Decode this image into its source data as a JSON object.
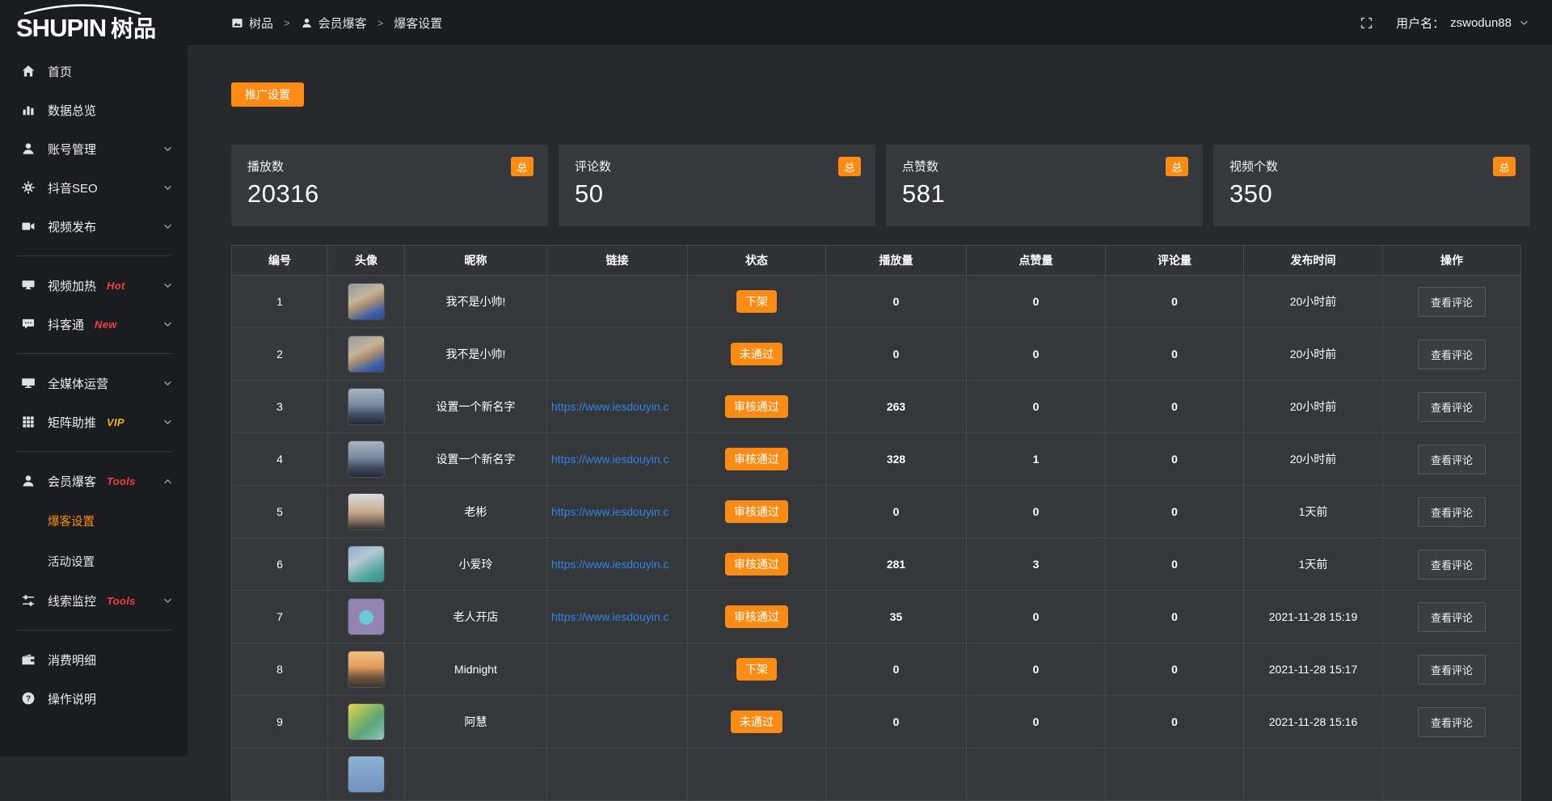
{
  "logo": {
    "brand_en": "SHUPIN",
    "brand_cn": "树品"
  },
  "header": {
    "breadcrumb": [
      {
        "label": "树品",
        "icon": "image-icon"
      },
      {
        "label": "会员爆客",
        "icon": "user-icon"
      },
      {
        "label": "爆客设置",
        "icon": ""
      }
    ],
    "separator": ">",
    "fullscreen_icon": "fullscreen-icon",
    "username_label": "用户名：",
    "username": "zswodun88"
  },
  "sidebar": {
    "items": [
      {
        "name": "home",
        "label": "首页",
        "icon": "home-icon"
      },
      {
        "name": "data-overview",
        "label": "数据总览",
        "icon": "chart-icon"
      },
      {
        "name": "account-management",
        "label": "账号管理",
        "icon": "user-icon",
        "chevron": "down"
      },
      {
        "name": "douyin-seo",
        "label": "抖音SEO",
        "icon": "gear-icon",
        "chevron": "down"
      },
      {
        "name": "video-publish",
        "label": "视频发布",
        "icon": "video-icon",
        "chevron": "down",
        "divider_after": true
      },
      {
        "name": "video-heating",
        "label": "视频加热",
        "icon": "screen-icon",
        "badge": "Hot",
        "badge_color": "#f23f3f",
        "chevron": "down"
      },
      {
        "name": "douketong",
        "label": "抖客通",
        "icon": "comment-icon",
        "badge": "New",
        "badge_color": "#f23f3f",
        "chevron": "down",
        "divider_after": true
      },
      {
        "name": "all-media-operation",
        "label": "全媒体运营",
        "icon": "monitor-icon",
        "chevron": "down"
      },
      {
        "name": "matrix-boost",
        "label": "矩阵助推",
        "icon": "grid-icon",
        "badge": "VIP",
        "badge_color": "#efb41c",
        "chevron": "down",
        "divider_after": true
      },
      {
        "name": "member-baoke",
        "label": "会员爆客",
        "icon": "member-icon",
        "badge": "Tools",
        "badge_color": "#f23f3f",
        "chevron": "up",
        "expanded": true,
        "children": [
          {
            "name": "baoke-settings",
            "label": "爆客设置",
            "active": true
          },
          {
            "name": "activity-settings",
            "label": "活动设置",
            "active": false
          }
        ]
      },
      {
        "name": "clue-monitor",
        "label": "线索监控",
        "icon": "sliders-icon",
        "badge": "Tools",
        "badge_color": "#f23f3f",
        "chevron": "down",
        "divider_after": true
      },
      {
        "name": "consumption-detail",
        "label": "消费明细",
        "icon": "wallet-icon"
      },
      {
        "name": "operation-guide",
        "label": "操作说明",
        "icon": "question-icon"
      }
    ]
  },
  "toolbar": {
    "promo_button": "推广设置"
  },
  "stats": [
    {
      "label": "播放数",
      "value": "20316",
      "badge": "总"
    },
    {
      "label": "评论数",
      "value": "50",
      "badge": "总"
    },
    {
      "label": "点赞数",
      "value": "581",
      "badge": "总"
    },
    {
      "label": "视频个数",
      "value": "350",
      "badge": "总"
    }
  ],
  "table": {
    "columns": [
      "编号",
      "头像",
      "昵称",
      "链接",
      "状态",
      "播放量",
      "点赞量",
      "评论量",
      "发布时间",
      "操作"
    ],
    "action_label": "查看评论",
    "rows": [
      {
        "no": "1",
        "nickname": "我不是小帅!",
        "link": "",
        "status": "下架",
        "plays": "0",
        "likes": "0",
        "comments": "0",
        "time": "20小时前",
        "avatar": "linear-gradient(155deg,#8e9a99 0%,#c7b49b 38%,#a8906f 55%,#3d5fa8 80%,#2d4a8c 100%)"
      },
      {
        "no": "2",
        "nickname": "我不是小帅!",
        "link": "",
        "status": "未通过",
        "plays": "0",
        "likes": "0",
        "comments": "0",
        "time": "20小时前",
        "avatar": "linear-gradient(155deg,#8e9a99 0%,#c7b49b 38%,#a8906f 55%,#3d5fa8 80%,#2d4a8c 100%)"
      },
      {
        "no": "3",
        "nickname": "设置一个新名字",
        "link": "https://www.iesdouyin.c",
        "status": "审核通过",
        "plays": "263",
        "likes": "0",
        "comments": "0",
        "time": "20小时前",
        "avatar": "linear-gradient(180deg,#a8b4c4 0%,#7b8aa0 45%,#3f4a5e 75%,#23283a 100%)"
      },
      {
        "no": "4",
        "nickname": "设置一个新名字",
        "link": "https://www.iesdouyin.c",
        "status": "审核通过",
        "plays": "328",
        "likes": "1",
        "comments": "0",
        "time": "20小时前",
        "avatar": "linear-gradient(180deg,#a8b4c4 0%,#7b8aa0 45%,#3f4a5e 75%,#23283a 100%)"
      },
      {
        "no": "5",
        "nickname": "老彬",
        "link": "https://www.iesdouyin.c",
        "status": "审核通过",
        "plays": "0",
        "likes": "0",
        "comments": "0",
        "time": "1天前",
        "avatar": "linear-gradient(180deg,#d8dbde 0%,#c9ab8e 50%,#8a7260 75%,#32302e 100%)"
      },
      {
        "no": "6",
        "nickname": "小爱玲",
        "link": "https://www.iesdouyin.c",
        "status": "审核通过",
        "plays": "281",
        "likes": "3",
        "comments": "0",
        "time": "1天前",
        "avatar": "linear-gradient(150deg,#88aed0 0%,#b8c8d4 35%,#57a8a0 70%,#2f8f86 100%)"
      },
      {
        "no": "7",
        "nickname": "老人开店",
        "link": "https://www.iesdouyin.c",
        "status": "审核通过",
        "plays": "35",
        "likes": "0",
        "comments": "0",
        "time": "2021-11-28 15:19",
        "avatar": "radial-gradient(circle at 50% 52%,#6ac8d8 0 27%,#9285b2 29%)"
      },
      {
        "no": "8",
        "nickname": "Midnight",
        "link": "",
        "status": "下架",
        "plays": "0",
        "likes": "0",
        "comments": "0",
        "time": "2021-11-28 15:17",
        "avatar": "linear-gradient(180deg,#f0c083 0%,#e09a5a 45%,#7a5a42 70%,#3a342e 100%)"
      },
      {
        "no": "9",
        "nickname": "阿慧",
        "link": "",
        "status": "未通过",
        "plays": "0",
        "likes": "0",
        "comments": "0",
        "time": "2021-11-28 15:16",
        "avatar": "linear-gradient(140deg,#e8d44e 0%,#8fba62 35%,#5da478 60%,#79b9a0 85%,#a7cbb8 100%)"
      },
      {
        "no": "",
        "nickname": "",
        "link": "",
        "status": "",
        "plays": "",
        "likes": "",
        "comments": "",
        "time": "",
        "avatar": "linear-gradient(180deg,#8fb2d8,#6f92c0)",
        "partial": true
      }
    ]
  },
  "colors": {
    "accent_orange": "#fa8c16",
    "link_blue": "#2e86e8",
    "hot_red": "#f23f3f",
    "vip_yellow": "#efb41c",
    "sidebar_bg": "#1b1c1f",
    "content_bg": "#28292d",
    "card_bg": "#36383d"
  }
}
